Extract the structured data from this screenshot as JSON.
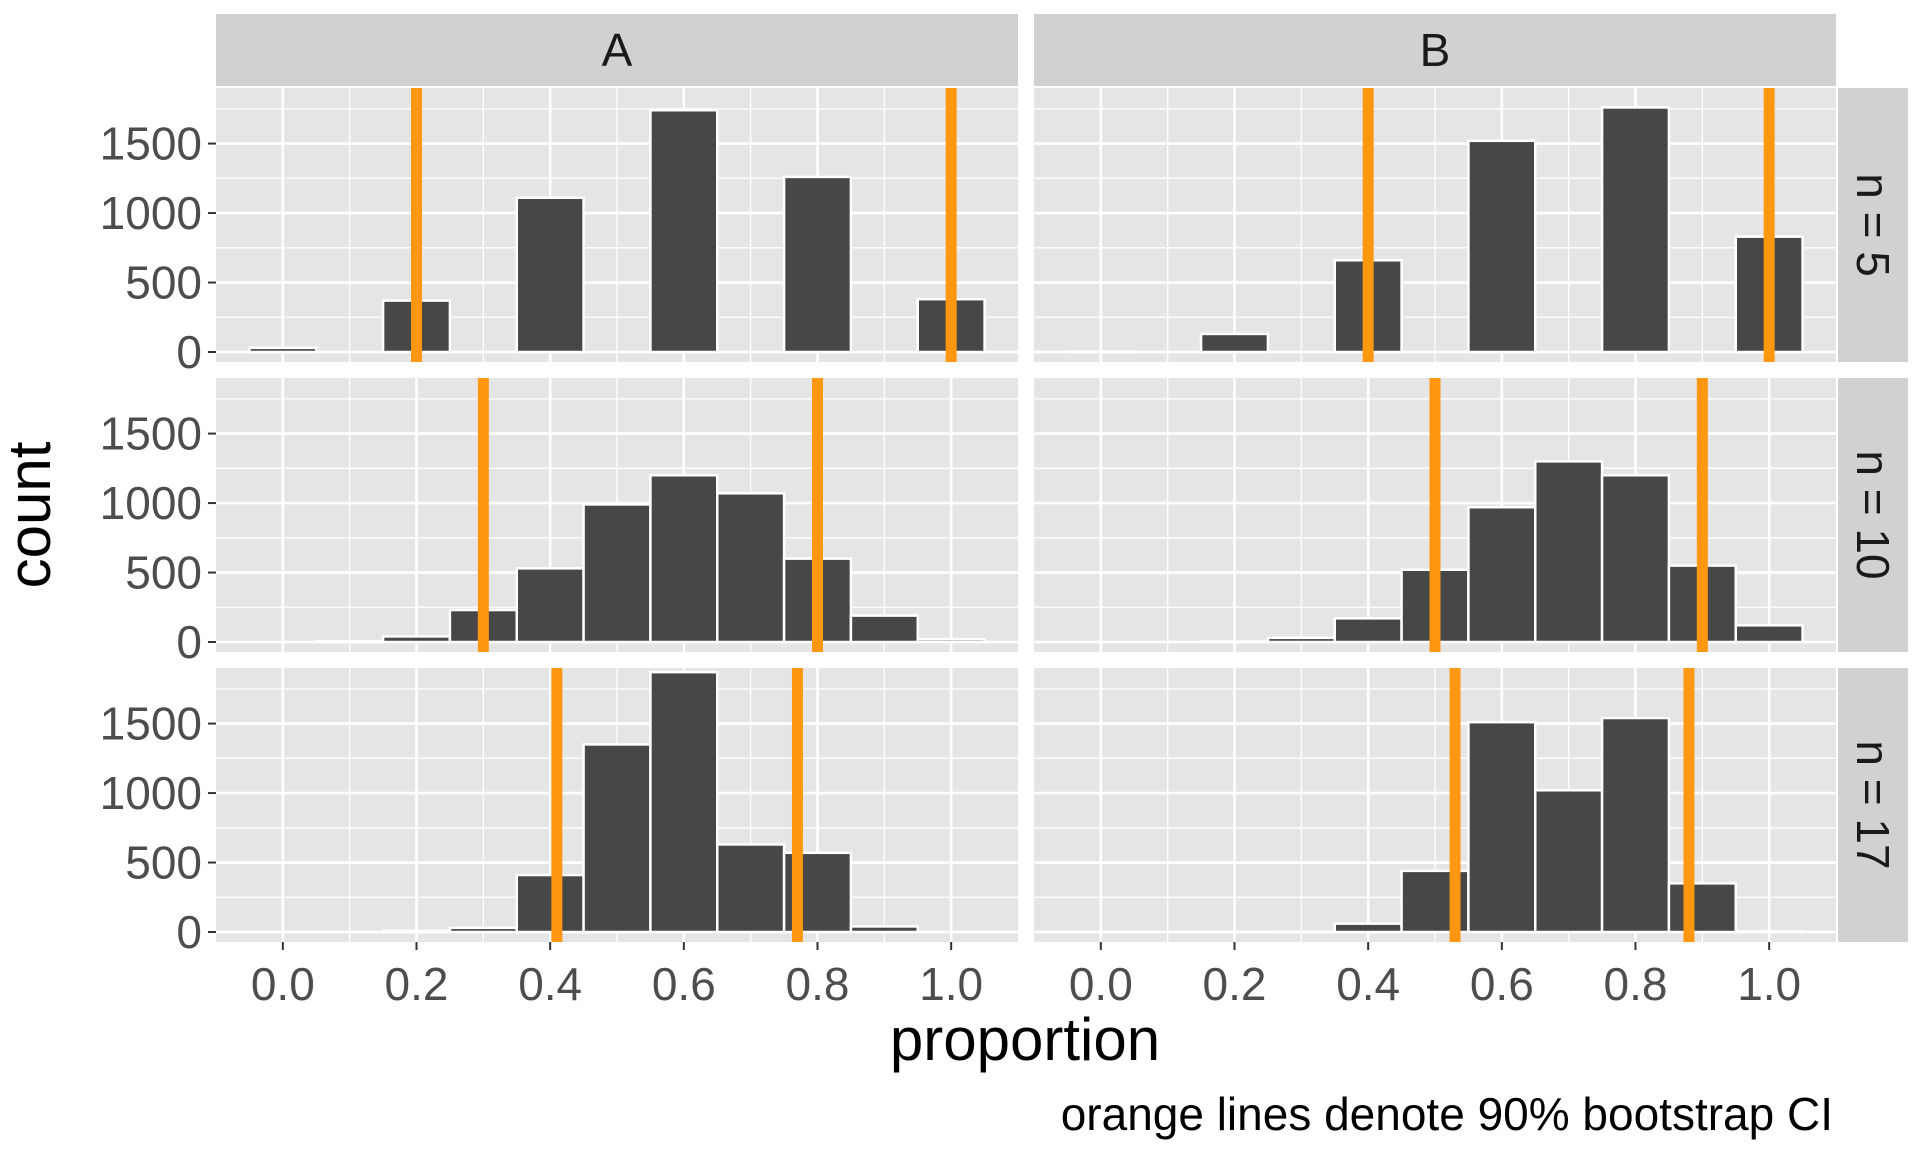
{
  "chart_data": {
    "type": "bar",
    "facet_columns": [
      "A",
      "B"
    ],
    "facet_rows": [
      "n = 5",
      "n = 10",
      "n = 17"
    ],
    "xlabel": "proportion",
    "ylabel": "count",
    "caption": "orange lines denote 90% bootstrap CI",
    "xlim": [
      -0.1,
      1.1
    ],
    "ylim": [
      0,
      1900
    ],
    "x_ticks": [
      0.0,
      0.2,
      0.4,
      0.6,
      0.8,
      1.0
    ],
    "x_tick_labels": [
      "0.0",
      "0.2",
      "0.4",
      "0.6",
      "0.8",
      "1.0"
    ],
    "y_ticks": [
      0,
      500,
      1000,
      1500
    ],
    "y_tick_labels": [
      "0",
      "500",
      "1000",
      "1500"
    ],
    "bin_width": 0.1,
    "bin_centers": [
      0.0,
      0.1,
      0.2,
      0.3,
      0.4,
      0.5,
      0.6,
      0.7,
      0.8,
      0.9,
      1.0
    ],
    "grid": true,
    "colors": {
      "panel_bg": "#e5e5e5",
      "strip_bg": "#d1d1d1",
      "bar_fill": "#474747",
      "bar_stroke": "#ffffff",
      "grid": "#ffffff",
      "ci_line": "#ff9710"
    },
    "panels": [
      {
        "column": "A",
        "row": "n = 5",
        "counts": [
          30,
          0,
          370,
          0,
          1110,
          0,
          1740,
          0,
          1260,
          0,
          380
        ],
        "ci": [
          0.2,
          1.0
        ]
      },
      {
        "column": "B",
        "row": "n = 5",
        "counts": [
          3,
          0,
          130,
          0,
          660,
          0,
          1520,
          0,
          1760,
          0,
          830
        ],
        "ci": [
          0.4,
          1.0
        ]
      },
      {
        "column": "A",
        "row": "n = 10",
        "counts": [
          0,
          5,
          40,
          230,
          530,
          990,
          1200,
          1070,
          600,
          190,
          20
        ],
        "ci": [
          0.3,
          0.8
        ]
      },
      {
        "column": "B",
        "row": "n = 10",
        "counts": [
          0,
          0,
          3,
          30,
          170,
          520,
          970,
          1300,
          1200,
          550,
          120
        ],
        "ci": [
          0.5,
          0.9
        ]
      },
      {
        "column": "A",
        "row": "n = 17",
        "counts": [
          0,
          0,
          8,
          30,
          410,
          1350,
          1870,
          630,
          570,
          40,
          0
        ],
        "ci": [
          0.41,
          0.77
        ]
      },
      {
        "column": "B",
        "row": "n = 17",
        "counts": [
          0,
          0,
          0,
          2,
          60,
          440,
          1510,
          1020,
          1540,
          350,
          5
        ],
        "ci": [
          0.53,
          0.88
        ]
      }
    ]
  }
}
